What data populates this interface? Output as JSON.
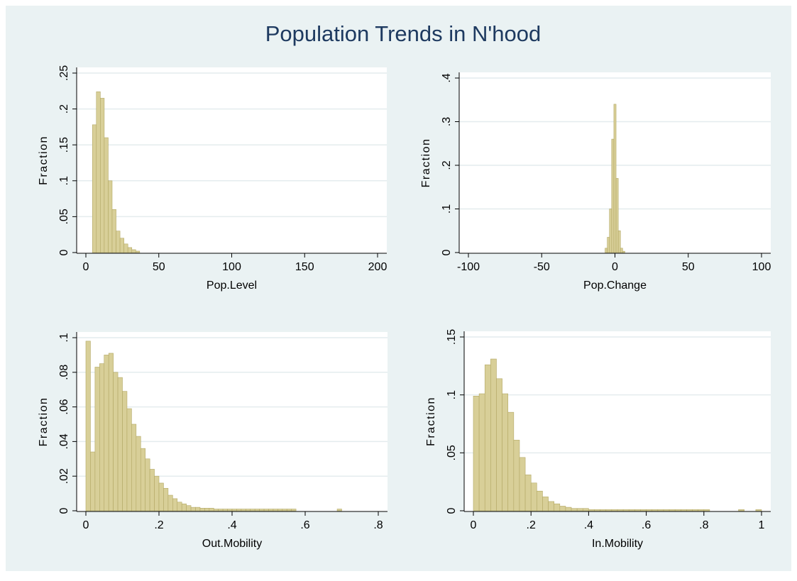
{
  "title": "Population Trends in N'hood",
  "chart_data": [
    {
      "type": "histogram",
      "xlabel": "Pop.Level",
      "ylabel": "Fraction",
      "color": "#d8cf98",
      "grid": true,
      "bins": [
        4.5,
        7.2,
        9.9,
        12.6,
        15.3,
        18,
        20.7,
        23.4,
        26.1,
        28.8,
        31.5,
        34.2,
        36.9
      ],
      "values": [
        0.178,
        0.224,
        0.215,
        0.16,
        0.1,
        0.06,
        0.03,
        0.02,
        0.012,
        0.007,
        0.004,
        0.002
      ],
      "xlim": [
        0,
        200
      ],
      "xticks": [
        0,
        50,
        100,
        150,
        200
      ],
      "ylim": [
        0,
        0.25
      ],
      "yticks": [
        0,
        {
          "value": 0.05,
          "label": ".05"
        },
        {
          "value": 0.1,
          "label": ".1"
        },
        {
          "value": 0.15,
          "label": ".15"
        },
        {
          "value": 0.2,
          "label": ".2"
        },
        {
          "value": 0.25,
          "label": ".25"
        }
      ]
    },
    {
      "type": "histogram",
      "xlabel": "Pop.Change",
      "ylabel": "Fraction",
      "color": "#d8cf98",
      "grid": true,
      "bins": [
        -6.75,
        -5.25,
        -3.75,
        -2.25,
        -0.75,
        0.75,
        2.25,
        3.75,
        5.25,
        6.75
      ],
      "values": [
        0.01,
        0.035,
        0.1,
        0.26,
        0.34,
        0.17,
        0.05,
        0.01,
        0.003
      ],
      "xlim": [
        -100,
        100
      ],
      "xticks": [
        -100,
        -50,
        0,
        50,
        100
      ],
      "ylim": [
        0,
        0.4
      ],
      "yticks": [
        0,
        {
          "value": 0.1,
          "label": ".1"
        },
        {
          "value": 0.2,
          "label": ".2"
        },
        {
          "value": 0.3,
          "label": ".3"
        },
        {
          "value": 0.4,
          "label": ".4"
        }
      ]
    },
    {
      "type": "histogram",
      "xlabel": "Out.Mobility",
      "ylabel": "Fraction",
      "color": "#d8cf98",
      "grid": true,
      "bins": [
        0,
        0.0125,
        0.025,
        0.0375,
        0.05,
        0.0625,
        0.075,
        0.0875,
        0.1,
        0.1125,
        0.125,
        0.1375,
        0.15,
        0.1625,
        0.175,
        0.1875,
        0.2,
        0.2125,
        0.225,
        0.2375,
        0.25,
        0.2625,
        0.275,
        0.2875,
        0.3,
        0.3125,
        0.325,
        0.3375,
        0.35,
        0.3625,
        0.375,
        0.3875,
        0.4,
        0.4125,
        0.425,
        0.4375,
        0.45,
        0.4625,
        0.475,
        0.4875,
        0.5,
        0.5125,
        0.525,
        0.5375,
        0.55,
        0.5625,
        0.575,
        0.5875,
        0.6,
        0.6125,
        0.625,
        0.6375,
        0.65,
        0.6625,
        0.675,
        0.6875,
        0.7
      ],
      "values": [
        0.098,
        0.034,
        0.083,
        0.085,
        0.09,
        0.091,
        0.08,
        0.077,
        0.069,
        0.059,
        0.05,
        0.043,
        0.036,
        0.03,
        0.024,
        0.02,
        0.016,
        0.013,
        0.009,
        0.007,
        0.005,
        0.004,
        0.003,
        0.002,
        0.002,
        0.0015,
        0.0015,
        0.0015,
        0.001,
        0.001,
        0.001,
        0.001,
        0.001,
        0.001,
        0.001,
        0.001,
        0.001,
        0.001,
        0.001,
        0.001,
        0.001,
        0.001,
        0.001,
        0.001,
        0.001,
        0.001,
        0,
        0,
        0,
        0,
        0,
        0,
        0,
        0,
        0,
        0.001
      ],
      "xlim": [
        0,
        0.8
      ],
      "xticks": [
        0,
        {
          "value": 0.2,
          "label": ".2"
        },
        {
          "value": 0.4,
          "label": ".4"
        },
        {
          "value": 0.6,
          "label": ".6"
        },
        {
          "value": 0.8,
          "label": ".8"
        }
      ],
      "ylim": [
        0,
        0.1
      ],
      "yticks": [
        0,
        {
          "value": 0.02,
          "label": ".02"
        },
        {
          "value": 0.04,
          "label": ".04"
        },
        {
          "value": 0.06,
          "label": ".06"
        },
        {
          "value": 0.08,
          "label": ".08"
        },
        {
          "value": 0.1,
          "label": ".1"
        }
      ]
    },
    {
      "type": "histogram",
      "xlabel": "In.Mobility",
      "ylabel": "Fraction",
      "color": "#d8cf98",
      "grid": true,
      "bins": [
        0,
        0.02,
        0.04,
        0.06,
        0.08,
        0.1,
        0.12,
        0.14,
        0.16,
        0.18,
        0.2,
        0.22,
        0.24,
        0.26,
        0.28,
        0.3,
        0.32,
        0.34,
        0.36,
        0.38,
        0.4,
        0.42,
        0.44,
        0.46,
        0.48,
        0.5,
        0.52,
        0.54,
        0.56,
        0.58,
        0.6,
        0.62,
        0.64,
        0.66,
        0.68,
        0.7,
        0.72,
        0.74,
        0.76,
        0.78,
        0.8,
        0.82,
        0.84,
        0.86,
        0.88,
        0.9,
        0.92,
        0.94,
        0.96,
        0.98,
        1
      ],
      "values": [
        0.099,
        0.101,
        0.126,
        0.131,
        0.114,
        0.101,
        0.085,
        0.061,
        0.046,
        0.031,
        0.024,
        0.017,
        0.012,
        0.008,
        0.006,
        0.004,
        0.003,
        0.002,
        0.002,
        0.002,
        0.001,
        0.001,
        0.001,
        0.001,
        0.001,
        0.001,
        0.001,
        0.001,
        0.001,
        0.001,
        0.001,
        0.001,
        0.001,
        0.001,
        0.001,
        0.001,
        0.001,
        0.001,
        0.001,
        0.001,
        0.001,
        0,
        0,
        0,
        0,
        0,
        0.001,
        0,
        0,
        0.001
      ],
      "xlim": [
        0,
        1
      ],
      "xticks": [
        0,
        {
          "value": 0.2,
          "label": ".2"
        },
        {
          "value": 0.4,
          "label": ".4"
        },
        {
          "value": 0.6,
          "label": ".6"
        },
        {
          "value": 0.8,
          "label": ".8"
        },
        1
      ],
      "ylim": [
        0,
        0.15
      ],
      "yticks": [
        0,
        {
          "value": 0.05,
          "label": ".05"
        },
        {
          "value": 0.1,
          "label": ".1"
        },
        {
          "value": 0.15,
          "label": ".15"
        }
      ]
    }
  ]
}
